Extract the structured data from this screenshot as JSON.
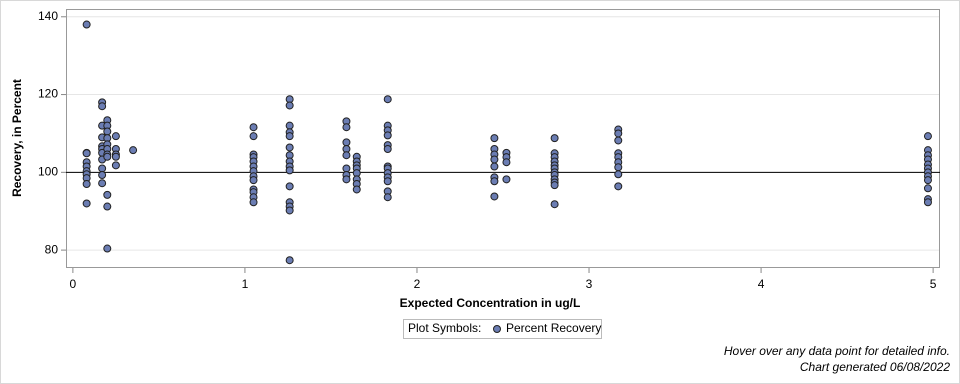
{
  "chart_data": {
    "type": "scatter",
    "x_label": "Expected Concentration in ug/L",
    "y_label": "Recovery, in Percent",
    "legend_title": "Plot Symbols:",
    "footnotes": [
      "Hover over any data point for detailed info.",
      "Chart generated 06/08/2022"
    ],
    "xlim": [
      -0.04,
      5.04
    ],
    "xticks": [
      0,
      1,
      2,
      3,
      4,
      5
    ],
    "ylim": [
      75.4,
      142
    ],
    "yticks": [
      80,
      100,
      120,
      140
    ],
    "grid": true,
    "reference_line": 100,
    "x": [
      0.08,
      0.08,
      0.08,
      0.08,
      0.08,
      0.08,
      0.08,
      0.08,
      0.08,
      0.08,
      0.17,
      0.17,
      0.17,
      0.17,
      0.17,
      0.17,
      0.17,
      0.17,
      0.17,
      0.17,
      0.17,
      0.2,
      0.2,
      0.2,
      0.2,
      0.2,
      0.2,
      0.2,
      0.2,
      0.2,
      0.2,
      0.2,
      0.25,
      0.25,
      0.25,
      0.25,
      0.25,
      0.35,
      1.05,
      1.05,
      1.05,
      1.05,
      1.05,
      1.05,
      1.05,
      1.05,
      1.05,
      1.05,
      1.05,
      1.05,
      1.05,
      1.26,
      1.26,
      1.26,
      1.26,
      1.26,
      1.26,
      1.26,
      1.26,
      1.26,
      1.26,
      1.26,
      1.26,
      1.26,
      1.26,
      1.26,
      1.59,
      1.59,
      1.59,
      1.59,
      1.59,
      1.59,
      1.59,
      1.59,
      1.65,
      1.65,
      1.65,
      1.65,
      1.65,
      1.65,
      1.65,
      1.65,
      1.83,
      1.83,
      1.83,
      1.83,
      1.83,
      1.83,
      1.83,
      1.83,
      1.83,
      1.83,
      1.83,
      1.83,
      1.83,
      2.45,
      2.45,
      2.45,
      2.45,
      2.45,
      2.45,
      2.45,
      2.45,
      2.52,
      2.52,
      2.52,
      2.52,
      2.8,
      2.8,
      2.8,
      2.8,
      2.8,
      2.8,
      2.8,
      2.8,
      2.8,
      2.8,
      2.8,
      2.8,
      3.17,
      3.17,
      3.17,
      3.17,
      3.17,
      3.17,
      3.17,
      3.17,
      3.17,
      4.97,
      4.97,
      4.97,
      4.97,
      4.97,
      4.97,
      4.97,
      4.97,
      4.97,
      4.97,
      4.97,
      4.97
    ],
    "series": [
      {
        "name": "Percent Recovery",
        "color": "#6b7db3",
        "values": [
          138,
          105,
          104.9,
          102.6,
          101.5,
          100.3,
          99.5,
          98.5,
          97,
          92,
          118,
          117,
          112,
          109,
          106.7,
          106,
          105,
          103.3,
          101,
          99.3,
          97.2,
          113.4,
          112,
          110.5,
          108.8,
          107.2,
          106,
          104.6,
          104,
          94.2,
          91.2,
          80.4,
          109.3,
          106,
          104.6,
          104,
          101.8,
          105.7,
          111.6,
          109.3,
          104.6,
          103.9,
          102.8,
          101.5,
          100.3,
          99,
          98,
          95.6,
          94.9,
          93.6,
          92.3,
          118.8,
          117.2,
          112,
          110.3,
          109.3,
          106.4,
          104.4,
          102.8,
          101.5,
          100.5,
          96.4,
          92.3,
          91.2,
          90.2,
          77.4,
          113.1,
          111.6,
          107.7,
          106,
          104.4,
          101,
          99.3,
          98.2,
          104,
          102.8,
          101.8,
          101,
          99.8,
          98.2,
          97,
          95.6,
          118.8,
          112,
          110.8,
          109.5,
          107,
          106,
          101.5,
          101,
          99.8,
          98.7,
          97.7,
          95.1,
          93.6,
          108.8,
          106,
          104.6,
          103.3,
          101.5,
          98.7,
          97.7,
          93.8,
          105,
          103.9,
          102.6,
          98.2,
          108.8,
          104.9,
          103.9,
          102.8,
          101.8,
          101,
          100,
          99.3,
          98.2,
          97.4,
          96.7,
          91.8,
          111,
          110,
          108.2,
          104.9,
          103.9,
          102.6,
          101.3,
          99.5,
          96.4,
          109.3,
          105.7,
          104.4,
          103.3,
          102,
          101,
          100,
          99,
          98,
          95.9,
          93.1,
          92.3
        ]
      }
    ]
  }
}
